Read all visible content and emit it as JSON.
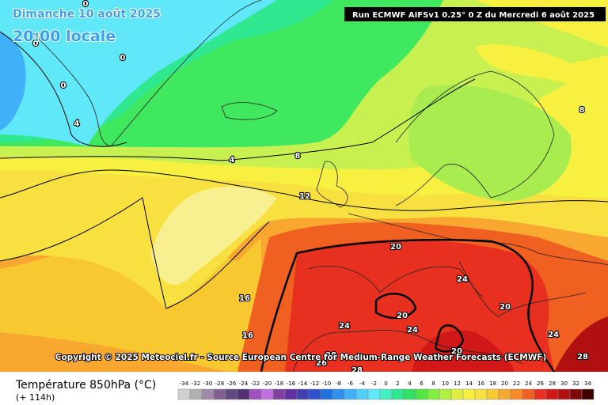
{
  "header": {
    "date": "Dimanche 10 août 2025",
    "time": "20:00 locale",
    "run": "Run ECMWF AIFSv1 0.25° 0 Z du Mercredi 6 août 2025"
  },
  "map": {
    "contour_labels": [
      0,
      0,
      0,
      0,
      4,
      4,
      8,
      8,
      12,
      20,
      24,
      20,
      20,
      16,
      16,
      24,
      24,
      20,
      24,
      28,
      28,
      26,
      28
    ]
  },
  "copyright": "Copyright © 2025 Meteociel.fr - Source European Centre for Medium-Range Weather Forecasts (ECMWF)",
  "legend": {
    "title": "Température 850hPa (°C)",
    "subtitle": "(+ 114h)",
    "ticks": [
      -34,
      -32,
      -30,
      -28,
      -26,
      -24,
      -22,
      -20,
      -18,
      -16,
      -14,
      -12,
      -10,
      -8,
      -6,
      -4,
      -2,
      0,
      2,
      4,
      6,
      8,
      10,
      12,
      14,
      16,
      18,
      20,
      22,
      24,
      26,
      28,
      30,
      32,
      34
    ],
    "colors": [
      "#d0d0d0",
      "#b0b0b0",
      "#a088a8",
      "#806090",
      "#604880",
      "#503070",
      "#a050c0",
      "#c070e0",
      "#8040a0",
      "#6030a0",
      "#4040b0",
      "#3050d0",
      "#2070e0",
      "#3090f0",
      "#40b0f8",
      "#50d0f8",
      "#60e8f8",
      "#40f0c0",
      "#30e890",
      "#30e060",
      "#50e840",
      "#80f040",
      "#b0f040",
      "#e0f040",
      "#f8f040",
      "#f8e040",
      "#f8c830",
      "#f8a830",
      "#f88828",
      "#f06020",
      "#e83020",
      "#d01818",
      "#b01010",
      "#800808",
      "#400000"
    ]
  }
}
